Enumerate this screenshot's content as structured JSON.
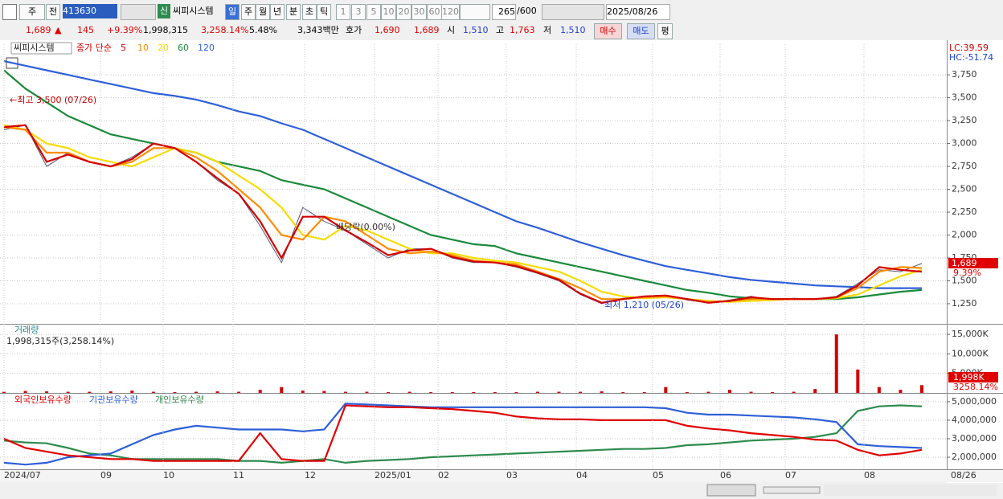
{
  "toolbar": {
    "period_type": "주",
    "scope": "전",
    "code": "413630",
    "new": "신",
    "name": "씨피시스템",
    "day": "일",
    "week": "주",
    "month": "월",
    "year": "년",
    "minute": "분",
    "second": "초",
    "tick": "틱",
    "n1": "1",
    "n3": "3",
    "n5": "5",
    "n10": "10",
    "n20": "20",
    "n30": "30",
    "n60": "60",
    "n120": "120",
    "count": "265",
    "max": "/600",
    "date": "2025/08/26"
  },
  "quote": {
    "price": "1,689",
    "arrow": "▲",
    "change": "145",
    "change_pct": "+9.39%",
    "volume": "1,998,315",
    "volume_ratio": "3,258.14%",
    "turnover": "5.48%",
    "amount": "3,343백만",
    "ask_label": "호가",
    "ask": "1,690",
    "bid": "1,689",
    "open_label": "시",
    "open": "1,510",
    "high_label": "고",
    "high": "1,763",
    "low_label": "저",
    "low": "1,510",
    "buy": "매수",
    "sell": "매도",
    "avg": "평"
  },
  "chart_data": [
    {
      "type": "line",
      "title": "씨피시스템",
      "legend_prefix": "종가 단순",
      "color": "#555577",
      "values": [
        3150,
        3200,
        2750,
        2900,
        2800,
        2750,
        2850,
        3000,
        2950,
        2800,
        2600,
        2450,
        2100,
        1700,
        2300,
        2150,
        2050,
        1900,
        1750,
        1850,
        1850,
        1750,
        1700,
        1700,
        1650,
        1580,
        1500,
        1350,
        1250,
        1310,
        1330,
        1340,
        1290,
        1260,
        1290,
        1330,
        1290,
        1310,
        1300,
        1330,
        1470,
        1620,
        1600,
        1689
      ],
      "series": [
        {
          "name": "5",
          "color": "#d40000",
          "values": [
            3180,
            3200,
            2800,
            2880,
            2800,
            2750,
            2830,
            3000,
            2950,
            2800,
            2620,
            2450,
            2150,
            1750,
            2200,
            2200,
            2050,
            1920,
            1780,
            1830,
            1850,
            1760,
            1710,
            1700,
            1660,
            1590,
            1510,
            1360,
            1260,
            1300,
            1330,
            1340,
            1300,
            1260,
            1280,
            1320,
            1300,
            1300,
            1300,
            1320,
            1450,
            1650,
            1620,
            1600
          ]
        },
        {
          "name": "10",
          "color": "#ff8c00",
          "values": [
            3180,
            3150,
            2900,
            2900,
            2800,
            2750,
            2800,
            2950,
            2950,
            2850,
            2700,
            2500,
            2300,
            2000,
            1950,
            2200,
            2150,
            2000,
            1850,
            1800,
            1820,
            1780,
            1720,
            1700,
            1680,
            1600,
            1520,
            1420,
            1300,
            1300,
            1320,
            1330,
            1300,
            1270,
            1280,
            1300,
            1300,
            1300,
            1300,
            1320,
            1420,
            1600,
            1650,
            1640
          ]
        },
        {
          "name": "20",
          "color": "#f5dc00",
          "values": [
            3200,
            3150,
            3000,
            2950,
            2850,
            2800,
            2750,
            2850,
            2950,
            2900,
            2800,
            2650,
            2500,
            2300,
            2000,
            1950,
            2100,
            2050,
            1950,
            1850,
            1800,
            1800,
            1750,
            1720,
            1700,
            1650,
            1600,
            1500,
            1380,
            1330,
            1310,
            1320,
            1300,
            1280,
            1270,
            1280,
            1290,
            1300,
            1300,
            1310,
            1350,
            1450,
            1550,
            1620
          ]
        },
        {
          "name": "60",
          "color": "#1a8a3a",
          "values": [
            3800,
            3600,
            3450,
            3300,
            3200,
            3100,
            3050,
            3000,
            2950,
            2900,
            2800,
            2750,
            2700,
            2600,
            2550,
            2500,
            2400,
            2300,
            2200,
            2100,
            2000,
            1950,
            1900,
            1880,
            1800,
            1750,
            1700,
            1650,
            1600,
            1550,
            1500,
            1450,
            1400,
            1370,
            1330,
            1310,
            1300,
            1300,
            1300,
            1300,
            1320,
            1350,
            1380,
            1400
          ]
        },
        {
          "name": "120",
          "color": "#2f5fd8",
          "values": [
            3900,
            3850,
            3800,
            3750,
            3700,
            3650,
            3600,
            3550,
            3520,
            3480,
            3420,
            3350,
            3300,
            3220,
            3150,
            3050,
            2950,
            2850,
            2750,
            2650,
            2550,
            2450,
            2350,
            2250,
            2150,
            2080,
            2000,
            1920,
            1850,
            1780,
            1720,
            1660,
            1620,
            1580,
            1540,
            1510,
            1490,
            1470,
            1450,
            1440,
            1430,
            1420,
            1420,
            1420
          ]
        }
      ],
      "ylim": [
        1030,
        4085
      ],
      "yticks": [
        {
          "value": 1250,
          "label": "1,250"
        },
        {
          "value": 1500,
          "label": "1,500"
        },
        {
          "value": 1750,
          "label": "1,750"
        },
        {
          "value": 2000,
          "label": "2,000"
        },
        {
          "value": 2250,
          "label": "2,250"
        },
        {
          "value": 2500,
          "label": "2,500"
        },
        {
          "value": 2750,
          "label": "2,750"
        },
        {
          "value": 3000,
          "label": "3,000"
        },
        {
          "value": 3250,
          "label": "3,250"
        },
        {
          "value": 3500,
          "label": "3,500"
        },
        {
          "value": 3750,
          "label": "3,750"
        }
      ],
      "grid": true,
      "annotations": [
        "←최고 3,500 (07/26)",
        "최저 1,210 (05/26)",
        "배당락(0.00%)"
      ],
      "last_label": "1,689",
      "last_pct": "9.39%",
      "lc": "LC:39.59",
      "hc": "HC:-51.74"
    },
    {
      "type": "bar",
      "title": "거래량",
      "subtitle": "1,998,315주(3,258.14%)",
      "color": "#d40000",
      "values": [
        300,
        500,
        400,
        300,
        300,
        400,
        600,
        300,
        200,
        300,
        400,
        300,
        800,
        1500,
        600,
        500,
        300,
        300,
        200,
        300,
        200,
        200,
        200,
        200,
        200,
        300,
        300,
        300,
        400,
        200,
        200,
        1500,
        200,
        300,
        800,
        300,
        200,
        300,
        1000,
        15000,
        6000,
        1500,
        800,
        1998
      ],
      "ylim": [
        0,
        17500
      ],
      "yticks": [
        {
          "value": 5000,
          "label": "5,000K"
        },
        {
          "value": 10000,
          "label": "10,000K"
        },
        {
          "value": 15000,
          "label": "15,000K"
        }
      ],
      "grid": true,
      "last_label": "1,998K",
      "last_pct": "3258.14%"
    },
    {
      "type": "line",
      "series": [
        {
          "name": "외국인보유수량",
          "color": "#e00000",
          "values": [
            3000000,
            2500000,
            2300000,
            2100000,
            2000000,
            1900000,
            1900000,
            1800000,
            1800000,
            1800000,
            1800000,
            1800000,
            3300000,
            1900000,
            1800000,
            1800000,
            4800000,
            4750000,
            4700000,
            4700000,
            4650000,
            4600000,
            4500000,
            4400000,
            4200000,
            4100000,
            4050000,
            4050000,
            4000000,
            4000000,
            4000000,
            4000000,
            3700000,
            3550000,
            3450000,
            3300000,
            3200000,
            3100000,
            2950000,
            2900000,
            2400000,
            2100000,
            2200000,
            2400000
          ]
        },
        {
          "name": "기관보유수량",
          "color": "#2f5fd8",
          "values": [
            1700000,
            1600000,
            1700000,
            2000000,
            2100000,
            2200000,
            2700000,
            3200000,
            3500000,
            3700000,
            3600000,
            3500000,
            3500000,
            3500000,
            3400000,
            3500000,
            4900000,
            4850000,
            4800000,
            4750000,
            4700000,
            4700000,
            4700000,
            4700000,
            4700000,
            4700000,
            4700000,
            4700000,
            4700000,
            4700000,
            4700000,
            4650000,
            4400000,
            4300000,
            4300000,
            4250000,
            4200000,
            4150000,
            4050000,
            3900000,
            2700000,
            2600000,
            2550000,
            2500000
          ]
        },
        {
          "name": "개인보유수량",
          "color": "#2e8b4e",
          "values": [
            2900000,
            2800000,
            2750000,
            2500000,
            2200000,
            2100000,
            1900000,
            1900000,
            1900000,
            1900000,
            1900000,
            1800000,
            1800000,
            1700000,
            1800000,
            1900000,
            1700000,
            1800000,
            1850000,
            1900000,
            2000000,
            2050000,
            2100000,
            2150000,
            2200000,
            2250000,
            2300000,
            2350000,
            2400000,
            2450000,
            2450000,
            2500000,
            2650000,
            2700000,
            2800000,
            2900000,
            2950000,
            3000000,
            3100000,
            3300000,
            4500000,
            4750000,
            4800000,
            4750000
          ]
        }
      ],
      "ylim": [
        1350000,
        5430000
      ],
      "yticks": [
        {
          "value": 2000000,
          "label": "2,000,000"
        },
        {
          "value": 3000000,
          "label": "3,000,000"
        },
        {
          "value": 4000000,
          "label": "4,000,000"
        },
        {
          "value": 5000000,
          "label": "5,000,000"
        }
      ],
      "grid": true,
      "x_labels": [
        "2024/07",
        "09",
        "10",
        "11",
        "12",
        "2025/01",
        "02",
        "03",
        "04",
        "05",
        "06",
        "07",
        "08",
        "08/26"
      ]
    }
  ]
}
